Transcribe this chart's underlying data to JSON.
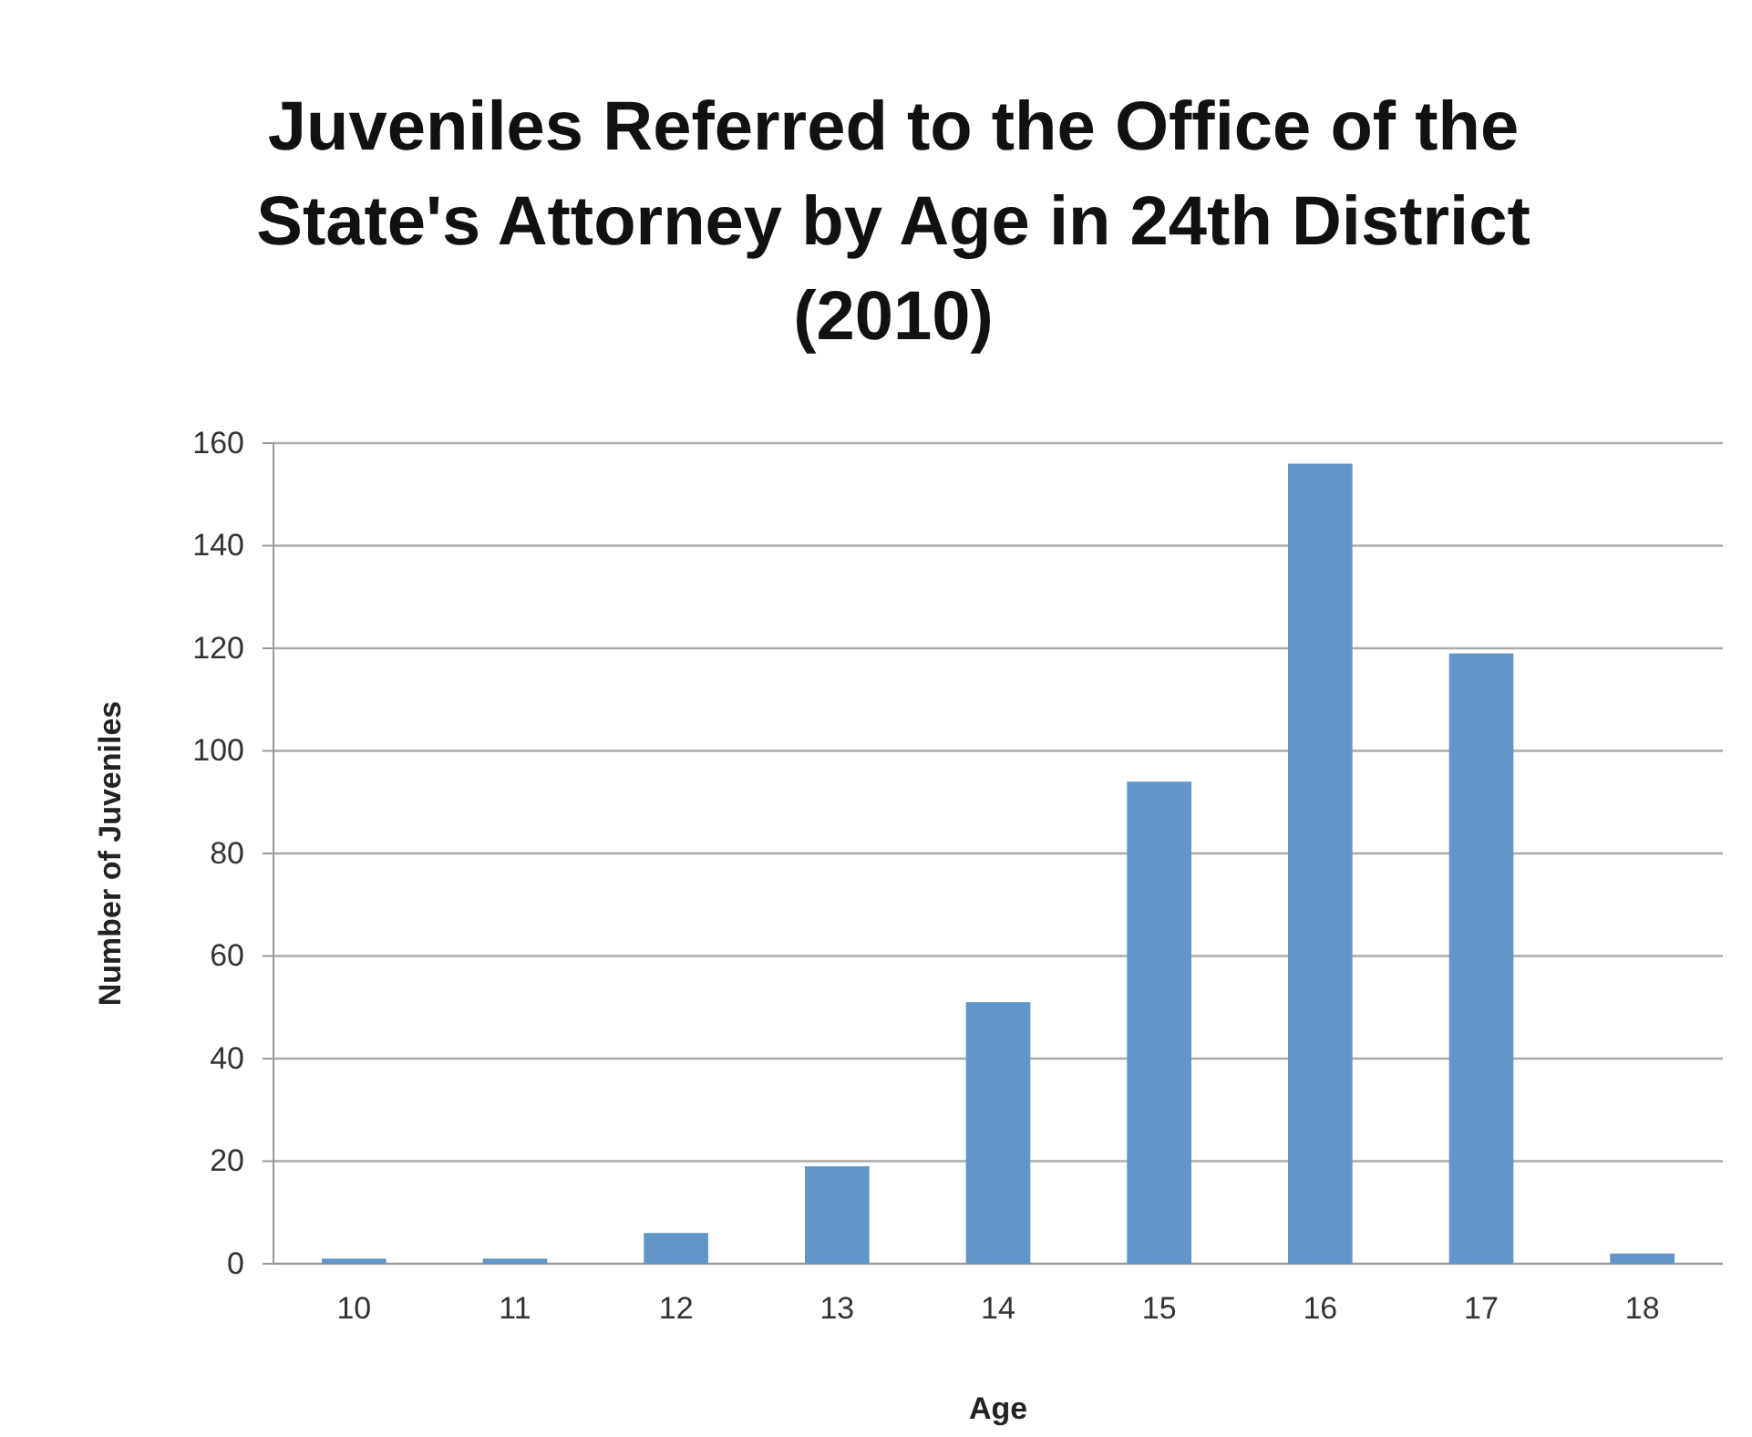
{
  "chart_data": {
    "type": "bar",
    "title": "Juveniles Referred to the Office of the State's Attorney by Age in 24th District (2010)",
    "xlabel": "Age",
    "ylabel": "Number of Juveniles",
    "categories": [
      "10",
      "11",
      "12",
      "13",
      "14",
      "15",
      "16",
      "17",
      "18"
    ],
    "values": [
      1,
      1,
      6,
      19,
      51,
      94,
      156,
      119,
      2
    ],
    "color": "#6296c9",
    "ylim": [
      0,
      160
    ],
    "yticks": [
      0,
      20,
      40,
      60,
      80,
      100,
      120,
      140,
      160
    ],
    "grid": "y"
  }
}
